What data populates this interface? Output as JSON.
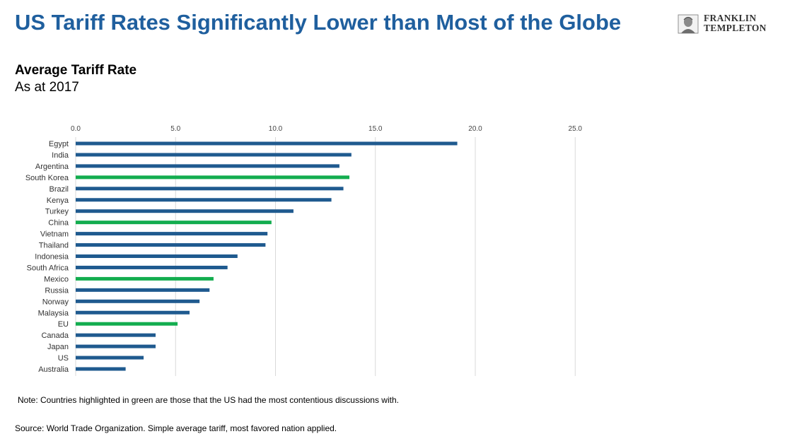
{
  "header": {
    "title": "US Tariff Rates Significantly Lower than Most of the Globe",
    "logo_line1": "FRANKLIN",
    "logo_line2": "TEMPLETON"
  },
  "chart_data": {
    "type": "bar",
    "orientation": "horizontal",
    "title": "Average Tariff Rate",
    "subtitle": "As at 2017",
    "xlim": [
      0,
      25
    ],
    "x_ticks": [
      "0.0",
      "5.0",
      "10.0",
      "15.0",
      "20.0",
      "25.0"
    ],
    "x_axis_position": "top",
    "grid": true,
    "categories": [
      "Egypt",
      "India",
      "Argentina",
      "South Korea",
      "Brazil",
      "Kenya",
      "Turkey",
      "China",
      "Vietnam",
      "Thailand",
      "Indonesia",
      "South Africa",
      "Mexico",
      "Russia",
      "Norway",
      "Malaysia",
      "EU",
      "Canada",
      "Japan",
      "US",
      "Australia"
    ],
    "values": [
      19.1,
      13.8,
      13.2,
      13.7,
      13.4,
      12.8,
      10.9,
      9.8,
      9.6,
      9.5,
      8.1,
      7.6,
      6.9,
      6.7,
      6.2,
      5.7,
      5.1,
      4.0,
      4.0,
      3.4,
      2.5
    ],
    "highlighted": [
      "South Korea",
      "China",
      "Mexico",
      "EU"
    ],
    "colors": {
      "default": "#1f5a8f",
      "highlight": "#13ad4f",
      "grid": "#d9d9d9",
      "title": "#1f5f9e"
    }
  },
  "footer": {
    "note": "Note: Countries highlighted in green are those that the US had the most contentious discussions with.",
    "source": "Source: World Trade Organization. Simple average tariff, most favored nation applied."
  }
}
